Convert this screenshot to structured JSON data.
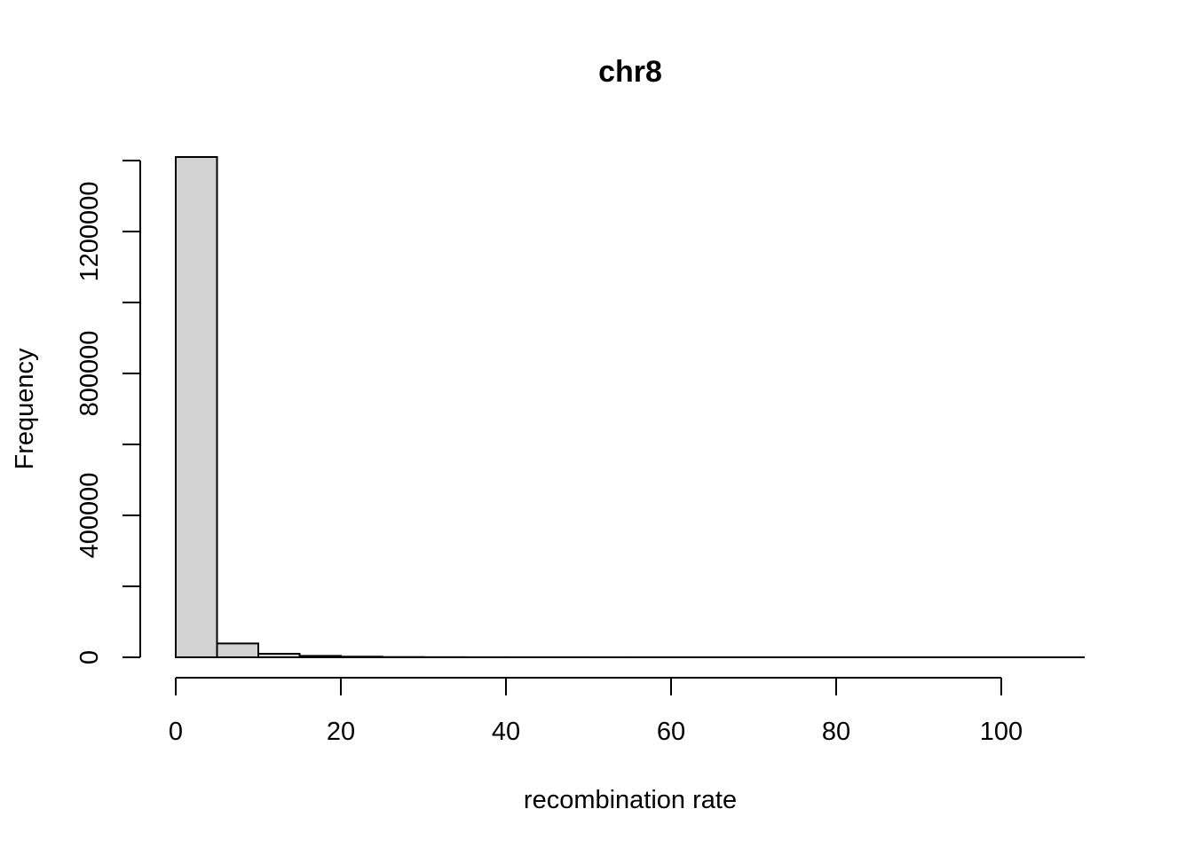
{
  "chart_data": {
    "type": "bar",
    "title": "chr8",
    "xlabel": "recombination rate",
    "ylabel": "Frequency",
    "bin_width": 5,
    "bins": [
      {
        "x0": 0,
        "x1": 5,
        "count": 1410000
      },
      {
        "x0": 5,
        "x1": 10,
        "count": 39000
      },
      {
        "x0": 10,
        "x1": 15,
        "count": 10000
      },
      {
        "x0": 15,
        "x1": 20,
        "count": 4000
      },
      {
        "x0": 20,
        "x1": 25,
        "count": 1800
      },
      {
        "x0": 25,
        "x1": 30,
        "count": 700
      },
      {
        "x0": 30,
        "x1": 35,
        "count": 350
      },
      {
        "x0": 35,
        "x1": 40,
        "count": 200
      },
      {
        "x0": 40,
        "x1": 45,
        "count": 120
      },
      {
        "x0": 45,
        "x1": 50,
        "count": 80
      },
      {
        "x0": 50,
        "x1": 55,
        "count": 50
      },
      {
        "x0": 55,
        "x1": 60,
        "count": 30
      },
      {
        "x0": 60,
        "x1": 65,
        "count": 20
      },
      {
        "x0": 65,
        "x1": 70,
        "count": 15
      },
      {
        "x0": 70,
        "x1": 75,
        "count": 10
      },
      {
        "x0": 75,
        "x1": 80,
        "count": 8
      },
      {
        "x0": 80,
        "x1": 85,
        "count": 6
      },
      {
        "x0": 85,
        "x1": 90,
        "count": 4
      },
      {
        "x0": 90,
        "x1": 95,
        "count": 3
      },
      {
        "x0": 95,
        "x1": 100,
        "count": 2
      },
      {
        "x0": 100,
        "x1": 105,
        "count": 1
      },
      {
        "x0": 105,
        "x1": 110,
        "count": 1
      }
    ],
    "xlim": [
      0,
      110
    ],
    "ylim": [
      0,
      1400000
    ],
    "x_ticks": [
      0,
      20,
      40,
      60,
      80,
      100
    ],
    "x_tick_labels": [
      "0",
      "20",
      "40",
      "60",
      "80",
      "100"
    ],
    "y_ticks": [
      0,
      200000,
      400000,
      600000,
      800000,
      1000000,
      1200000,
      1400000
    ],
    "y_tick_labels": [
      "0",
      "",
      "400000",
      "",
      "800000",
      "",
      "1200000",
      ""
    ],
    "bar_fill": "#d3d3d3",
    "bar_stroke": "#000000",
    "grid": false,
    "legend": "none"
  }
}
